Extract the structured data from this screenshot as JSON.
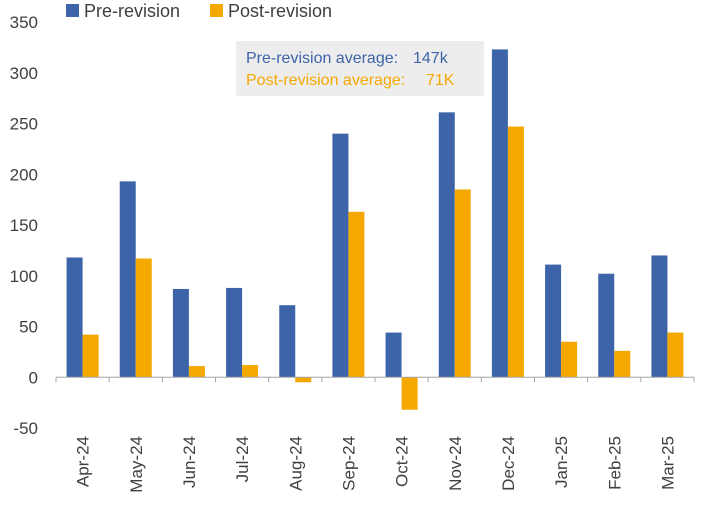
{
  "chart_data": {
    "type": "bar",
    "title": "",
    "xlabel": "",
    "ylabel": "",
    "categories": [
      "Apr-24",
      "May-24",
      "Jun-24",
      "Jul-24",
      "Aug-24",
      "Sep-24",
      "Oct-24",
      "Nov-24",
      "Dec-24",
      "Jan-25",
      "Feb-25",
      "Mar-25"
    ],
    "series": [
      {
        "name": "Pre-revision",
        "color": "#3d64a8",
        "values": [
          118,
          193,
          87,
          88,
          71,
          240,
          44,
          261,
          323,
          111,
          102,
          120
        ]
      },
      {
        "name": "Post-revision",
        "color": "#f5a800",
        "values": [
          42,
          117,
          11,
          12,
          -5,
          163,
          -32,
          185,
          247,
          35,
          26,
          44
        ]
      }
    ],
    "ylim": [
      -50,
      350
    ],
    "yticks": [
      350,
      300,
      250,
      200,
      150,
      100,
      50,
      0,
      -50
    ],
    "grid": false,
    "legend_position": "top-left",
    "annotation": {
      "pre_label": "Pre-revision average:",
      "pre_value": "147k",
      "post_label": "Post-revision average:",
      "post_value": "71K"
    }
  }
}
